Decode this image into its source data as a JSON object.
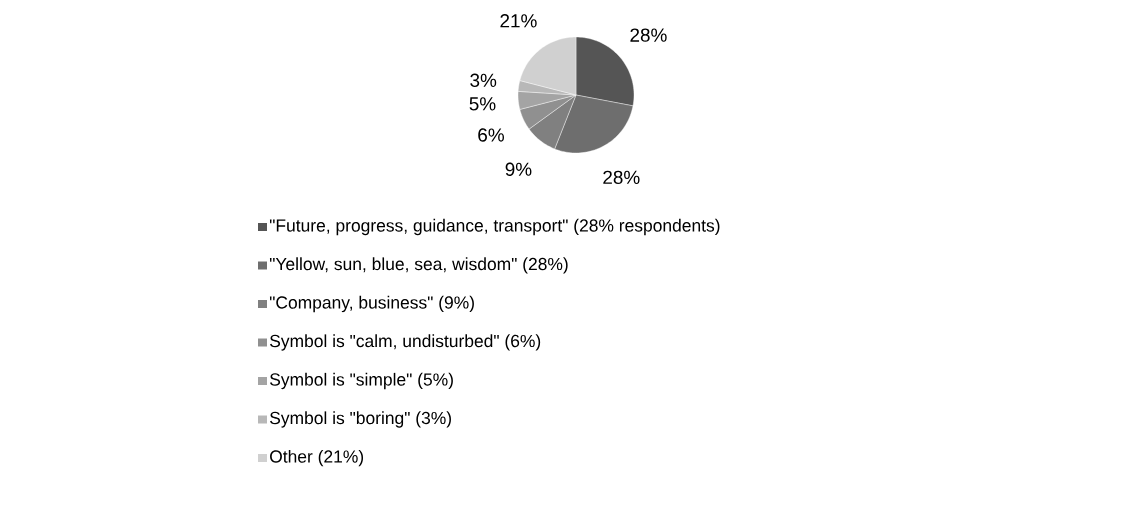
{
  "chart_data": {
    "type": "pie",
    "categories": [
      "\"Future, progress, guidance, transport\" (28% respondents)",
      "\"Yellow, sun, blue, sea, wisdom\" (28%)",
      "\"Company, business\" (9%)",
      "Symbol is \"calm, undisturbed\" (6%)",
      "Symbol is \"simple\" (5%)",
      "Symbol is \"boring\" (3%)",
      "Other (21%)"
    ],
    "values": [
      28,
      28,
      9,
      6,
      5,
      3,
      21
    ],
    "colors": [
      "#555555",
      "#6e6e6e",
      "#808080",
      "#909090",
      "#a4a4a4",
      "#b8b8b8",
      "#d0d0d0"
    ],
    "value_labels": [
      "28%",
      "28%",
      "9%",
      "6%",
      "5%",
      "3%",
      "21%"
    ],
    "legend": "bottom"
  }
}
